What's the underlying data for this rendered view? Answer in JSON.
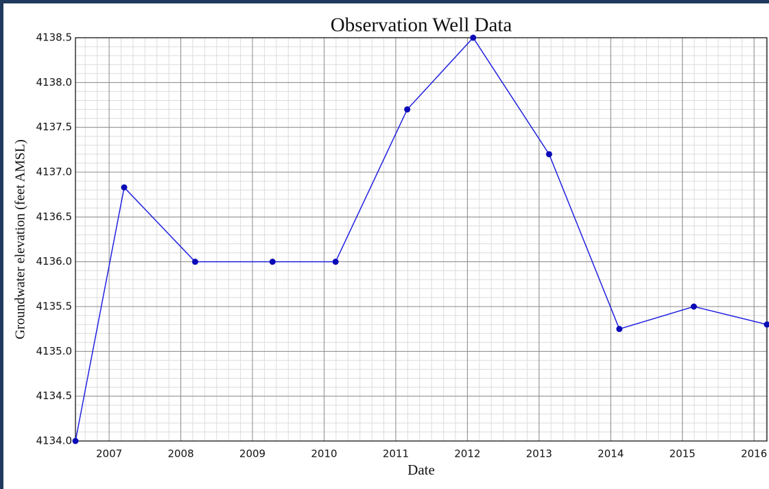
{
  "chart_data": {
    "type": "line",
    "title": "Observation Well Data",
    "x_label": "Date",
    "y_label": "Groundwater elevation (feet AMSL)",
    "x": [
      2006.53,
      2007.21,
      2008.2,
      2009.28,
      2010.16,
      2011.16,
      2012.08,
      2013.14,
      2014.12,
      2015.16,
      2016.18
    ],
    "series": [
      {
        "name": "Groundwater elevation",
        "color": "#1f1fe0",
        "values": [
          4134.0,
          4136.83,
          4136.0,
          4136.0,
          4136.0,
          4137.7,
          4138.5,
          4137.2,
          4135.25,
          4135.5,
          4135.3
        ]
      }
    ],
    "xlim": [
      2006.53,
      2016.18
    ],
    "xticks": [
      2007,
      2008,
      2009,
      2010,
      2011,
      2012,
      2013,
      2014,
      2015,
      2016
    ],
    "ylim": [
      4134.0,
      4138.5
    ],
    "yticks": [
      {
        "value": 4134.0,
        "label": "4134.0"
      },
      {
        "value": 4134.5,
        "label": "4134.5"
      },
      {
        "value": 4135.0,
        "label": "4135.0"
      },
      {
        "value": 4135.5,
        "label": "4135.5"
      },
      {
        "value": 4136.0,
        "label": "4136.0"
      },
      {
        "value": 4136.5,
        "label": "4136.5"
      },
      {
        "value": 4137.0,
        "label": "4137.0"
      },
      {
        "value": 4137.5,
        "label": "4137.5"
      },
      {
        "value": 4138.0,
        "label": "4138.0"
      },
      {
        "value": 4138.5,
        "label": "4138.5"
      }
    ],
    "grid": true,
    "minor_grid": true,
    "markers": true
  }
}
